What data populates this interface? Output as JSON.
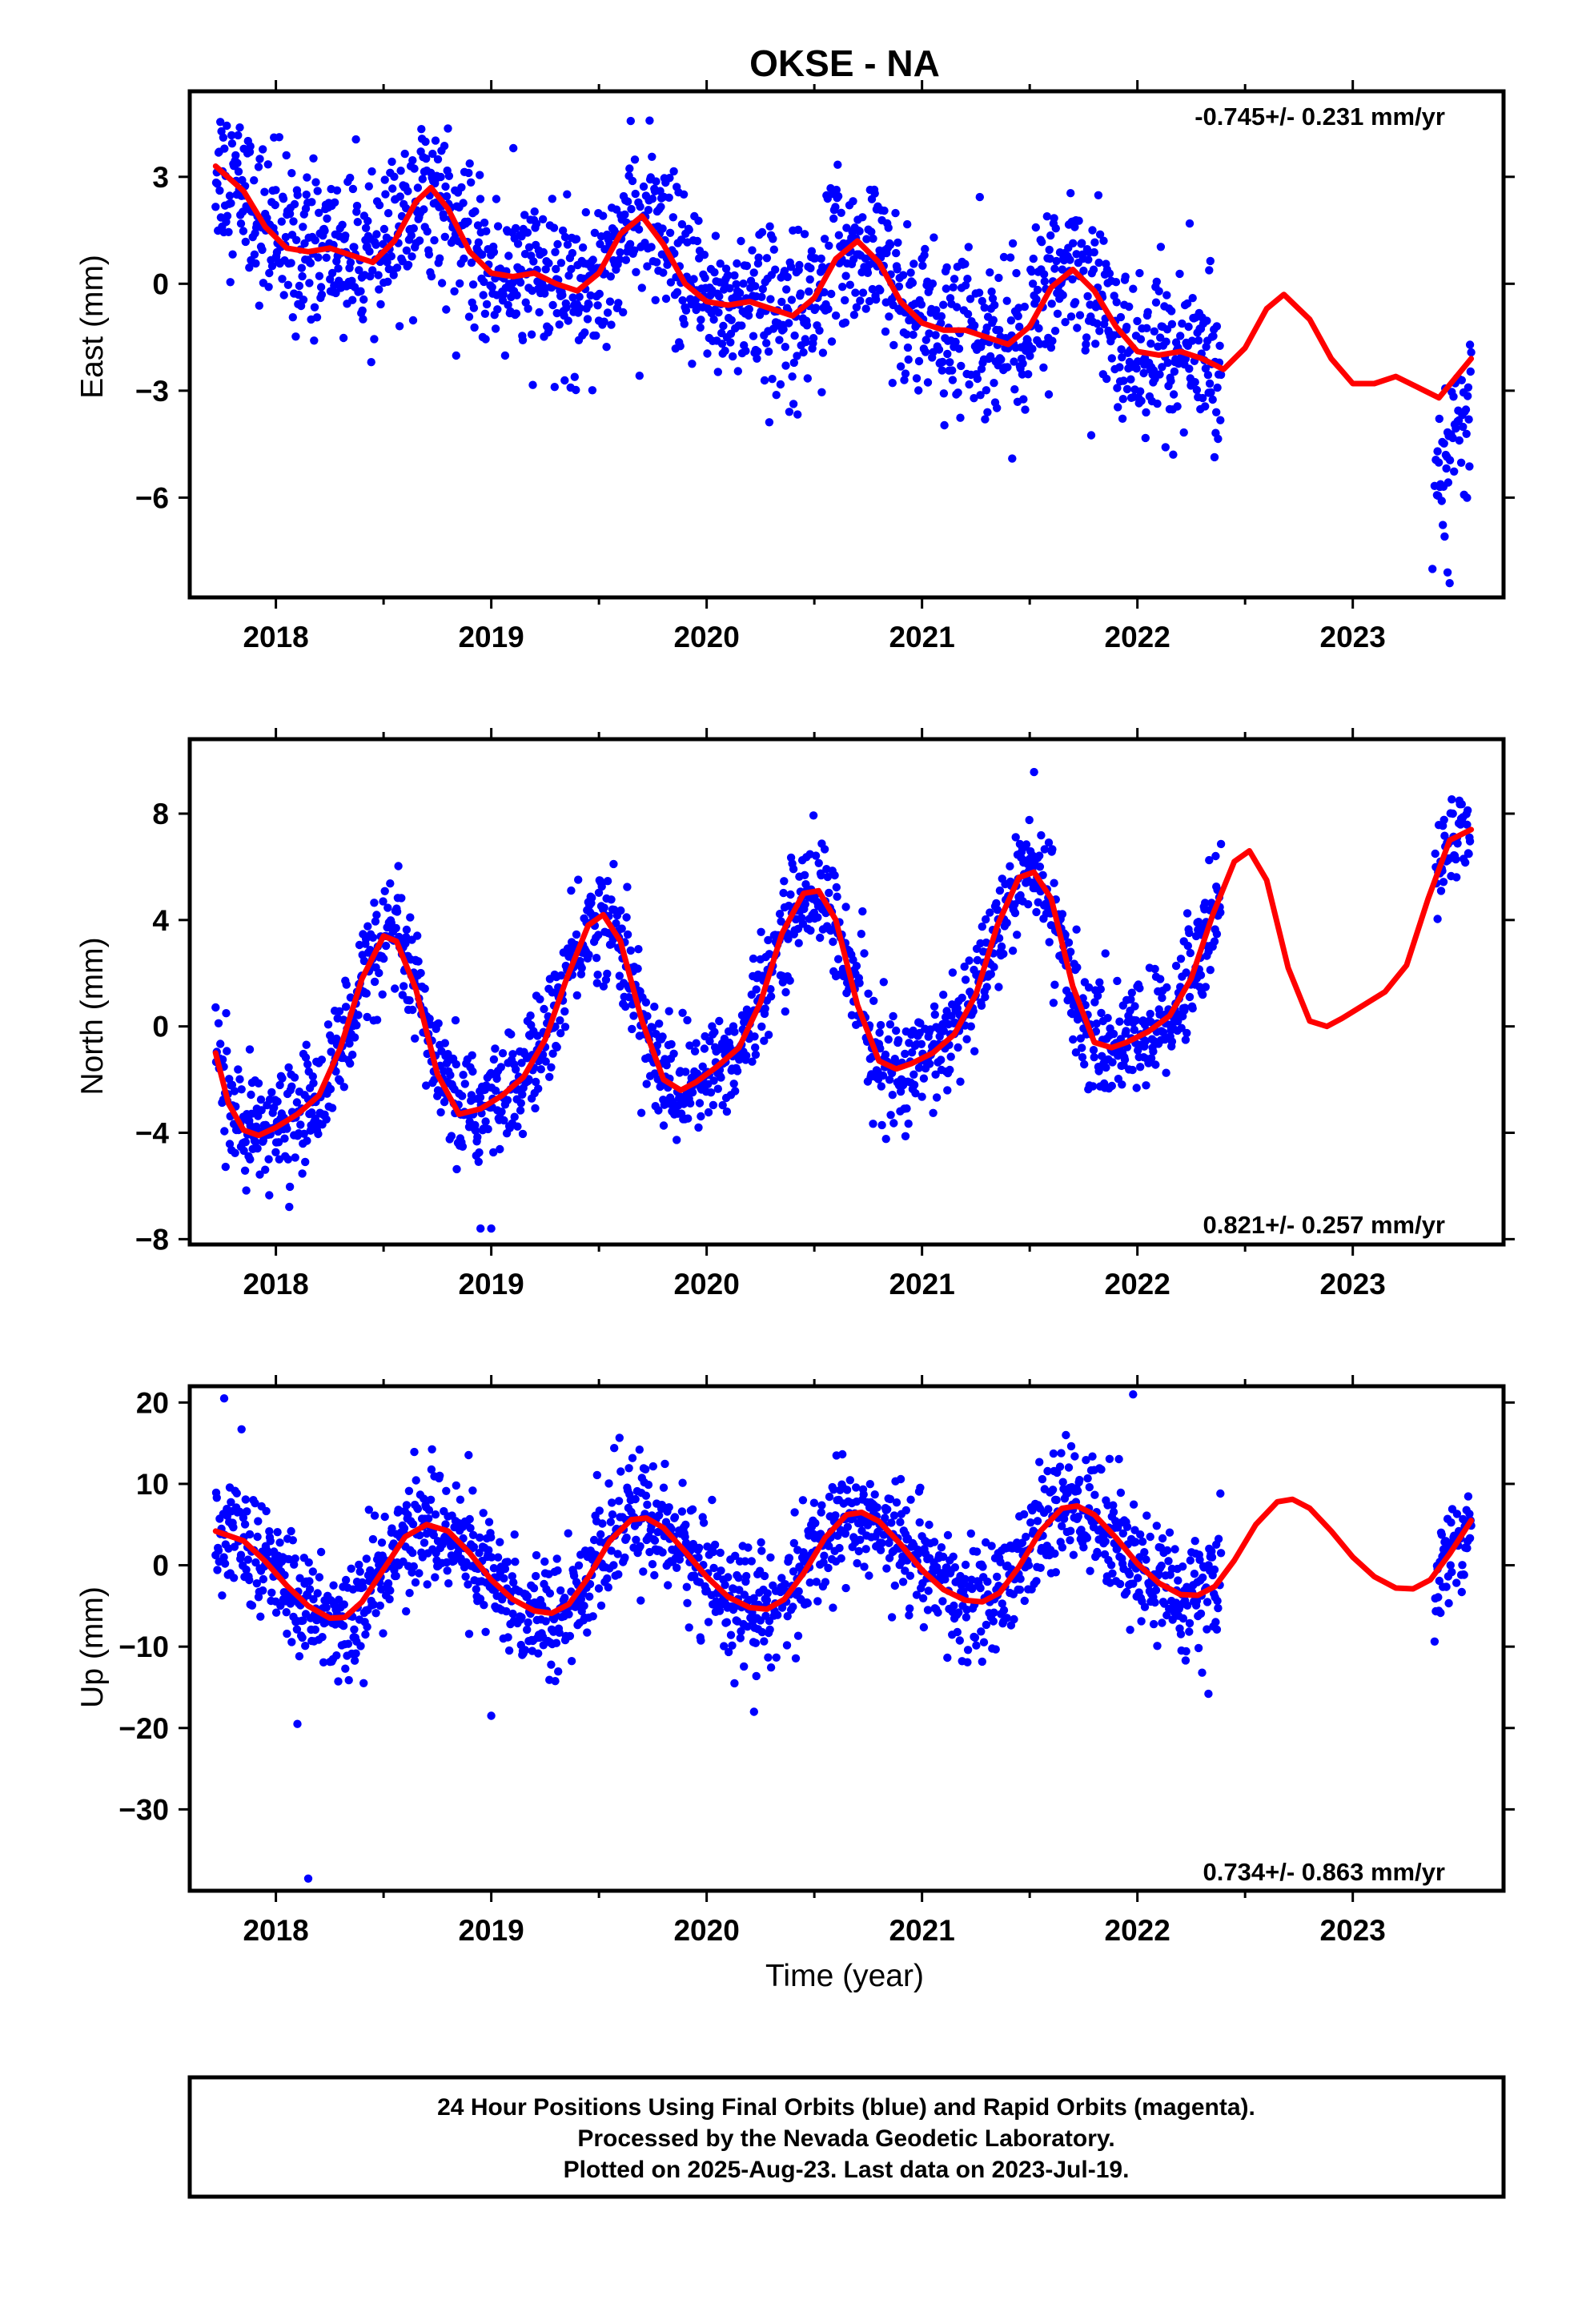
{
  "figure": {
    "title": "OKSE - NA",
    "xlabel": "Time (year)",
    "footer_lines": [
      "24 Hour Positions Using Final Orbits (blue) and Rapid Orbits (magenta).",
      "Processed by the Nevada Geodetic Laboratory.",
      "Plotted on 2025-Aug-23. Last data on 2023-Jul-19."
    ],
    "colors": {
      "data": "#0000ff",
      "model": "#ff0000",
      "frame": "#000000"
    }
  },
  "chart_data": [
    {
      "type": "scatter",
      "ylabel": "East (mm)",
      "rate_label": "-0.745+/- 0.231 mm/yr",
      "rate_position": "top-right",
      "xlim": [
        2017.6,
        2023.7
      ],
      "ylim": [
        -8.8,
        5.4
      ],
      "xticks": [
        2018,
        2019,
        2020,
        2021,
        2022,
        2023
      ],
      "xtick_labels": [
        "2018",
        "2019",
        "2020",
        "2021",
        "2022",
        "2023"
      ],
      "yticks": [
        3,
        0,
        -3,
        -6
      ],
      "ytick_labels": [
        "3",
        "0",
        "−3",
        "−6"
      ],
      "data_range": [
        2017.72,
        2022.39
      ],
      "data_range_2": [
        2023.38,
        2023.55
      ],
      "model": {
        "rate_mm_per_yr": -0.745,
        "curve": [
          [
            2017.72,
            3.3
          ],
          [
            2017.85,
            2.6
          ],
          [
            2017.95,
            1.6
          ],
          [
            2018.05,
            1.0
          ],
          [
            2018.15,
            0.9
          ],
          [
            2018.25,
            1.0
          ],
          [
            2018.35,
            0.8
          ],
          [
            2018.45,
            0.6
          ],
          [
            2018.55,
            1.2
          ],
          [
            2018.65,
            2.3
          ],
          [
            2018.72,
            2.7
          ],
          [
            2018.8,
            2.1
          ],
          [
            2018.9,
            0.9
          ],
          [
            2019.0,
            0.3
          ],
          [
            2019.1,
            0.2
          ],
          [
            2019.2,
            0.3
          ],
          [
            2019.3,
            0.0
          ],
          [
            2019.4,
            -0.2
          ],
          [
            2019.5,
            0.3
          ],
          [
            2019.6,
            1.4
          ],
          [
            2019.7,
            1.9
          ],
          [
            2019.8,
            1.1
          ],
          [
            2019.9,
            0.0
          ],
          [
            2020.0,
            -0.5
          ],
          [
            2020.1,
            -0.6
          ],
          [
            2020.2,
            -0.5
          ],
          [
            2020.3,
            -0.7
          ],
          [
            2020.4,
            -0.9
          ],
          [
            2020.5,
            -0.4
          ],
          [
            2020.6,
            0.7
          ],
          [
            2020.7,
            1.2
          ],
          [
            2020.8,
            0.6
          ],
          [
            2020.9,
            -0.5
          ],
          [
            2021.0,
            -1.1
          ],
          [
            2021.1,
            -1.3
          ],
          [
            2021.2,
            -1.3
          ],
          [
            2021.3,
            -1.5
          ],
          [
            2021.4,
            -1.7
          ],
          [
            2021.5,
            -1.2
          ],
          [
            2021.6,
            -0.1
          ],
          [
            2021.7,
            0.4
          ],
          [
            2021.8,
            -0.2
          ],
          [
            2021.9,
            -1.2
          ],
          [
            2022.0,
            -1.9
          ],
          [
            2022.1,
            -2.0
          ],
          [
            2022.2,
            -1.9
          ],
          [
            2022.3,
            -2.1
          ],
          [
            2022.4,
            -2.4
          ],
          [
            2022.5,
            -1.8
          ],
          [
            2022.6,
            -0.7
          ],
          [
            2022.68,
            -0.3
          ],
          [
            2022.8,
            -1.0
          ],
          [
            2022.9,
            -2.1
          ],
          [
            2023.0,
            -2.8
          ],
          [
            2023.1,
            -2.8
          ],
          [
            2023.2,
            -2.6
          ],
          [
            2023.3,
            -2.9
          ],
          [
            2023.4,
            -3.2
          ],
          [
            2023.55,
            -2.1
          ]
        ]
      },
      "outliers": [
        [
          2023.45,
          -8.4
        ],
        [
          2023.44,
          -8.1
        ],
        [
          2023.37,
          -8.0
        ]
      ]
    },
    {
      "type": "scatter",
      "ylabel": "North (mm)",
      "rate_label": "0.821+/- 0.257 mm/yr",
      "rate_position": "bottom-right",
      "xlim": [
        2017.6,
        2023.7
      ],
      "ylim": [
        -8.2,
        10.8
      ],
      "xticks": [
        2018,
        2019,
        2020,
        2021,
        2022,
        2023
      ],
      "xtick_labels": [
        "2018",
        "2019",
        "2020",
        "2021",
        "2022",
        "2023"
      ],
      "yticks": [
        8,
        4,
        0,
        -4,
        -8
      ],
      "ytick_labels": [
        "8",
        "4",
        "0",
        "−4",
        "−8"
      ],
      "data_range": [
        2017.72,
        2022.39
      ],
      "data_range_2": [
        2023.38,
        2023.55
      ],
      "model": {
        "rate_mm_per_yr": 0.821,
        "curve": [
          [
            2017.72,
            -1.0
          ],
          [
            2017.78,
            -2.9
          ],
          [
            2017.85,
            -3.9
          ],
          [
            2017.92,
            -4.1
          ],
          [
            2018.0,
            -3.8
          ],
          [
            2018.1,
            -3.3
          ],
          [
            2018.2,
            -2.6
          ],
          [
            2018.3,
            -0.8
          ],
          [
            2018.4,
            1.8
          ],
          [
            2018.5,
            3.4
          ],
          [
            2018.56,
            3.2
          ],
          [
            2018.65,
            1.4
          ],
          [
            2018.75,
            -1.8
          ],
          [
            2018.85,
            -3.3
          ],
          [
            2018.95,
            -3.1
          ],
          [
            2019.05,
            -2.6
          ],
          [
            2019.15,
            -1.9
          ],
          [
            2019.25,
            -0.5
          ],
          [
            2019.35,
            1.8
          ],
          [
            2019.45,
            3.8
          ],
          [
            2019.52,
            4.2
          ],
          [
            2019.6,
            3.2
          ],
          [
            2019.7,
            0.2
          ],
          [
            2019.8,
            -2.0
          ],
          [
            2019.88,
            -2.4
          ],
          [
            2019.95,
            -2.1
          ],
          [
            2020.05,
            -1.5
          ],
          [
            2020.15,
            -0.8
          ],
          [
            2020.25,
            0.9
          ],
          [
            2020.35,
            3.5
          ],
          [
            2020.45,
            5.0
          ],
          [
            2020.52,
            5.1
          ],
          [
            2020.6,
            4.0
          ],
          [
            2020.7,
            0.8
          ],
          [
            2020.8,
            -1.3
          ],
          [
            2020.88,
            -1.6
          ],
          [
            2020.95,
            -1.4
          ],
          [
            2021.05,
            -1.0
          ],
          [
            2021.15,
            -0.3
          ],
          [
            2021.25,
            1.2
          ],
          [
            2021.35,
            3.8
          ],
          [
            2021.45,
            5.6
          ],
          [
            2021.52,
            5.8
          ],
          [
            2021.6,
            4.8
          ],
          [
            2021.7,
            1.5
          ],
          [
            2021.8,
            -0.6
          ],
          [
            2021.88,
            -0.8
          ],
          [
            2021.95,
            -0.6
          ],
          [
            2022.05,
            -0.2
          ],
          [
            2022.15,
            0.4
          ],
          [
            2022.25,
            1.8
          ],
          [
            2022.35,
            4.2
          ],
          [
            2022.45,
            6.2
          ],
          [
            2022.52,
            6.6
          ],
          [
            2022.6,
            5.5
          ],
          [
            2022.7,
            2.2
          ],
          [
            2022.8,
            0.2
          ],
          [
            2022.88,
            0.0
          ],
          [
            2022.95,
            0.3
          ],
          [
            2023.05,
            0.8
          ],
          [
            2023.15,
            1.3
          ],
          [
            2023.25,
            2.3
          ],
          [
            2023.35,
            4.8
          ],
          [
            2023.45,
            7.0
          ],
          [
            2023.55,
            7.4
          ]
        ]
      },
      "outliers": [
        [
          2018.95,
          -7.6
        ],
        [
          2019.0,
          -7.6
        ],
        [
          2017.88,
          -5.0
        ]
      ]
    },
    {
      "type": "scatter",
      "ylabel": "Up (mm)",
      "rate_label": "0.734+/- 0.863 mm/yr",
      "rate_position": "bottom-right",
      "xlim": [
        2017.6,
        2023.7
      ],
      "ylim": [
        -40,
        22
      ],
      "xticks": [
        2018,
        2019,
        2020,
        2021,
        2022,
        2023
      ],
      "xtick_labels": [
        "2018",
        "2019",
        "2020",
        "2021",
        "2022",
        "2023"
      ],
      "yticks": [
        20,
        10,
        0,
        -10,
        -20,
        -30
      ],
      "ytick_labels": [
        "20",
        "10",
        "0",
        "−10",
        "−20",
        "−30"
      ],
      "data_range": [
        2017.72,
        2022.39
      ],
      "data_range_2": [
        2023.38,
        2023.55
      ],
      "model": {
        "rate_mm_per_yr": 0.734,
        "curve": [
          [
            2017.72,
            4.2
          ],
          [
            2017.85,
            3.0
          ],
          [
            2017.95,
            0.5
          ],
          [
            2018.05,
            -2.5
          ],
          [
            2018.15,
            -5.0
          ],
          [
            2018.25,
            -6.5
          ],
          [
            2018.32,
            -6.4
          ],
          [
            2018.4,
            -4.5
          ],
          [
            2018.5,
            -0.5
          ],
          [
            2018.6,
            3.5
          ],
          [
            2018.7,
            5.0
          ],
          [
            2018.8,
            4.2
          ],
          [
            2018.9,
            1.5
          ],
          [
            2019.0,
            -1.8
          ],
          [
            2019.1,
            -4.2
          ],
          [
            2019.2,
            -5.6
          ],
          [
            2019.28,
            -5.9
          ],
          [
            2019.36,
            -4.8
          ],
          [
            2019.45,
            -1.5
          ],
          [
            2019.55,
            3.0
          ],
          [
            2019.65,
            5.6
          ],
          [
            2019.72,
            5.8
          ],
          [
            2019.8,
            4.6
          ],
          [
            2019.9,
            1.7
          ],
          [
            2020.0,
            -1.4
          ],
          [
            2020.1,
            -3.9
          ],
          [
            2020.2,
            -5.2
          ],
          [
            2020.28,
            -5.4
          ],
          [
            2020.36,
            -4.2
          ],
          [
            2020.45,
            -1.0
          ],
          [
            2020.55,
            3.4
          ],
          [
            2020.65,
            6.2
          ],
          [
            2020.72,
            6.5
          ],
          [
            2020.8,
            5.4
          ],
          [
            2020.9,
            2.6
          ],
          [
            2021.0,
            -0.6
          ],
          [
            2021.1,
            -3.0
          ],
          [
            2021.2,
            -4.3
          ],
          [
            2021.28,
            -4.5
          ],
          [
            2021.36,
            -3.4
          ],
          [
            2021.45,
            -0.2
          ],
          [
            2021.55,
            4.2
          ],
          [
            2021.65,
            7.0
          ],
          [
            2021.72,
            7.3
          ],
          [
            2021.8,
            6.2
          ],
          [
            2021.9,
            3.4
          ],
          [
            2022.0,
            0.2
          ],
          [
            2022.1,
            -2.2
          ],
          [
            2022.2,
            -3.6
          ],
          [
            2022.28,
            -3.7
          ],
          [
            2022.36,
            -2.6
          ],
          [
            2022.45,
            0.6
          ],
          [
            2022.55,
            5.0
          ],
          [
            2022.65,
            7.8
          ],
          [
            2022.72,
            8.1
          ],
          [
            2022.8,
            7.0
          ],
          [
            2022.9,
            4.2
          ],
          [
            2023.0,
            1.0
          ],
          [
            2023.1,
            -1.4
          ],
          [
            2023.2,
            -2.8
          ],
          [
            2023.28,
            -2.9
          ],
          [
            2023.36,
            -1.8
          ],
          [
            2023.45,
            1.4
          ],
          [
            2023.55,
            5.5
          ]
        ]
      },
      "outliers": [
        [
          2018.1,
          -19.5
        ],
        [
          2018.15,
          -38.5
        ],
        [
          2019.0,
          -18.5
        ],
        [
          2020.22,
          -18.0
        ],
        [
          2021.98,
          21.0
        ],
        [
          2017.76,
          20.5
        ],
        [
          2022.33,
          -15.8
        ]
      ]
    }
  ]
}
